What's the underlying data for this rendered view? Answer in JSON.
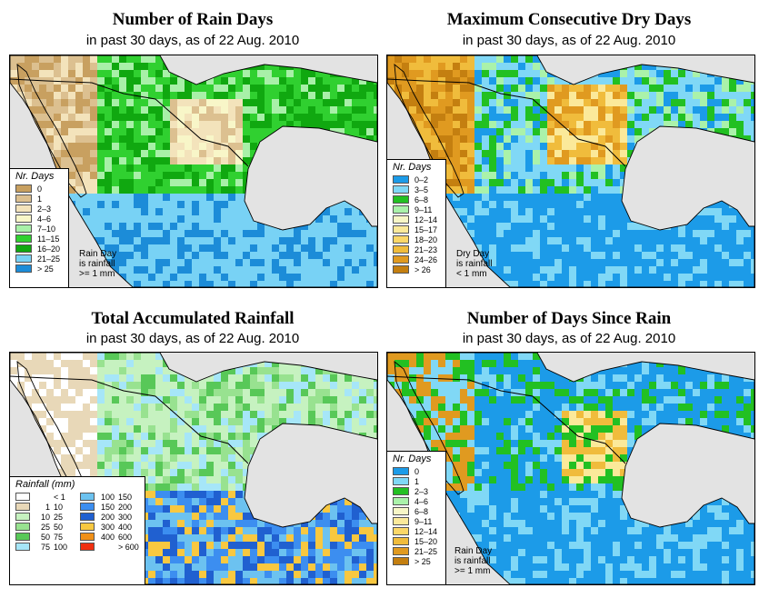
{
  "panels": [
    {
      "title": "Number of Rain Days",
      "subtitle": "in past 30 days, as of  22 Aug. 2010",
      "legend_title": "Nr. Days",
      "legend": [
        {
          "label": "0",
          "color": "#c8a060"
        },
        {
          "label": "1",
          "color": "#dcc090"
        },
        {
          "label": "2–3",
          "color": "#f3e3bb"
        },
        {
          "label": "4–6",
          "color": "#f8f6c8"
        },
        {
          "label": "7–10",
          "color": "#a8f0a8"
        },
        {
          "label": "11–15",
          "color": "#30d030"
        },
        {
          "label": "16–20",
          "color": "#10a810"
        },
        {
          "label": "21–25",
          "color": "#78d2f5"
        },
        {
          "label": "> 25",
          "color": "#1c8cd8"
        }
      ],
      "note": [
        "Rain Day",
        "is rainfall",
        ">= 1 mm"
      ]
    },
    {
      "title": "Maximum Consecutive Dry Days",
      "subtitle": "in past 30 days, as of  22 Aug. 2010",
      "legend_title": "Nr. Days",
      "legend": [
        {
          "label": "0–2",
          "color": "#1c9be8"
        },
        {
          "label": "3–5",
          "color": "#80d8f6"
        },
        {
          "label": "6–8",
          "color": "#22c022"
        },
        {
          "label": "9–11",
          "color": "#aaf2aa"
        },
        {
          "label": "12–14",
          "color": "#f7f6c6"
        },
        {
          "label": "15–17",
          "color": "#fbe99a"
        },
        {
          "label": "18–20",
          "color": "#fbd768"
        },
        {
          "label": "21–23",
          "color": "#f0bc3c"
        },
        {
          "label": "24–26",
          "color": "#e09a20"
        },
        {
          "label": "> 26",
          "color": "#c47f10"
        }
      ],
      "note": [
        "Dry Day",
        "is rainfall",
        "< 1 mm"
      ]
    },
    {
      "title": "Total Accumulated Rainfall",
      "subtitle": "in past 30 days, as of  22 Aug. 2010",
      "legend_title": "Rainfall (mm)",
      "legend_left": [
        {
          "lo": "",
          "hi": "< 1",
          "color": "#ffffff"
        },
        {
          "lo": "1",
          "hi": "10",
          "color": "#e8d8b8"
        },
        {
          "lo": "10",
          "hi": "25",
          "color": "#c6f2c0"
        },
        {
          "lo": "25",
          "hi": "50",
          "color": "#98e290"
        },
        {
          "lo": "50",
          "hi": "75",
          "color": "#58c858"
        },
        {
          "lo": "75",
          "hi": "100",
          "color": "#a6e6f8"
        }
      ],
      "legend_right": [
        {
          "lo": "100",
          "hi": "150",
          "color": "#6cc2f0"
        },
        {
          "lo": "150",
          "hi": "200",
          "color": "#3c8ef0"
        },
        {
          "lo": "200",
          "hi": "300",
          "color": "#2060d0"
        },
        {
          "lo": "300",
          "hi": "400",
          "color": "#f8c840"
        },
        {
          "lo": "400",
          "hi": "600",
          "color": "#f09018"
        },
        {
          "lo": "",
          "hi": "> 600",
          "color": "#f03010"
        }
      ]
    },
    {
      "title": "Number of Days Since Rain",
      "subtitle": "in past 30 days, as of  22 Aug. 2010",
      "legend_title": "Nr. Days",
      "legend": [
        {
          "label": "0",
          "color": "#1c9be8"
        },
        {
          "label": "1",
          "color": "#80d8f6"
        },
        {
          "label": "2–3",
          "color": "#22c022"
        },
        {
          "label": "4–6",
          "color": "#aaf2aa"
        },
        {
          "label": "6–8",
          "color": "#f7f6c6"
        },
        {
          "label": "9–11",
          "color": "#fbe99a"
        },
        {
          "label": "12–14",
          "color": "#fbd768"
        },
        {
          "label": "15–20",
          "color": "#f0bc3c"
        },
        {
          "label": "21–25",
          "color": "#e09a20"
        },
        {
          "label": "> 25",
          "color": "#c47f10"
        }
      ],
      "note": [
        "Rain Day",
        "is rainfall",
        ">= 1 mm"
      ]
    }
  ],
  "colors": {
    "ocean": "#e3e3e3",
    "border": "#000000"
  }
}
